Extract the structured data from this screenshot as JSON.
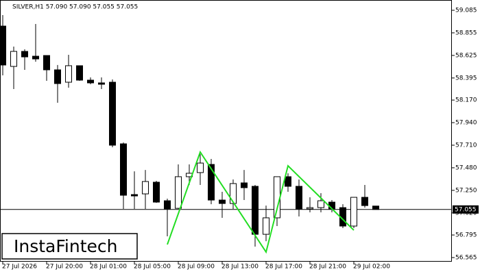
{
  "chart_data": {
    "type": "candlestick",
    "title": "SILVER,H1  57.090 57.090 57.055 57.055",
    "watermark": "InstaFintech",
    "categories": [
      "27 Jul 2026",
      null,
      null,
      null,
      "27 Jul 20:00",
      null,
      null,
      null,
      "28 Jul 01:00",
      null,
      null,
      null,
      "28 Jul 05:00",
      null,
      null,
      null,
      "28 Jul 09:00",
      null,
      null,
      null,
      "28 Jul 13:00",
      null,
      null,
      null,
      "28 Jul 17:00",
      null,
      null,
      null,
      "28 Jul 21:00",
      null,
      null,
      null,
      "29 Jul 02:00",
      null,
      null
    ],
    "open": [
      58.924,
      58.513,
      58.666,
      58.617,
      58.624,
      58.478,
      58.352,
      58.52,
      58.373,
      58.345,
      58.352,
      57.724,
      57.207,
      57.214,
      57.333,
      57.144,
      57.067,
      57.389,
      57.431,
      57.514,
      57.151,
      57.116,
      57.326,
      57.291,
      56.802,
      56.97,
      57.389,
      57.291,
      57.061,
      57.074,
      57.13,
      57.074,
      56.886,
      57.179,
      57.09
    ],
    "high": [
      59.036,
      58.715,
      58.687,
      58.945,
      58.624,
      58.527,
      58.631,
      58.52,
      58.401,
      58.401,
      58.38,
      57.738,
      57.444,
      57.458,
      57.347,
      57.165,
      57.514,
      57.514,
      57.619,
      57.57,
      57.235,
      57.361,
      57.458,
      57.305,
      57.095,
      57.389,
      57.424,
      57.361,
      57.179,
      57.221,
      57.151,
      57.109,
      57.179,
      57.305,
      57.09
    ],
    "low": [
      58.422,
      58.282,
      58.478,
      58.561,
      58.366,
      58.143,
      58.296,
      58.366,
      58.331,
      58.282,
      57.689,
      57.061,
      57.061,
      57.061,
      57.123,
      56.781,
      57.061,
      57.305,
      57.305,
      57.109,
      56.97,
      57.061,
      57.151,
      56.677,
      56.732,
      56.886,
      57.235,
      56.984,
      57.026,
      57.026,
      57.026,
      56.865,
      56.865,
      57.074,
      57.055
    ],
    "close": [
      58.527,
      58.666,
      58.61,
      58.589,
      58.478,
      58.338,
      58.52,
      58.373,
      58.345,
      58.331,
      57.71,
      57.2,
      57.193,
      57.34,
      57.13,
      57.061,
      57.389,
      57.424,
      57.528,
      57.151,
      57.116,
      57.319,
      57.277,
      56.802,
      56.97,
      57.389,
      57.291,
      57.061,
      57.074,
      57.144,
      57.061,
      56.886,
      57.179,
      57.095,
      57.055
    ],
    "up_color": "#ffffff",
    "down_color": "#000000",
    "ylim": [
      56.565,
      59.085
    ],
    "yticks": [
      59.085,
      58.855,
      58.625,
      58.395,
      {
        "value": 58.17,
        "label": "58.170"
      },
      {
        "value": 57.94,
        "label": "57.940"
      },
      {
        "value": 57.71,
        "label": "57.710"
      },
      {
        "value": 57.48,
        "label": "57.480"
      },
      {
        "value": 57.25,
        "label": "57.250"
      },
      {
        "value": 57.02,
        "label": "57.020"
      },
      56.795,
      56.565
    ],
    "last_price": 57.055,
    "pattern": {
      "color": "#22dd22",
      "x": [
        15,
        18,
        24,
        26,
        32
      ],
      "values": [
        56.698,
        57.64,
        56.621,
        57.5,
        56.844
      ]
    }
  }
}
